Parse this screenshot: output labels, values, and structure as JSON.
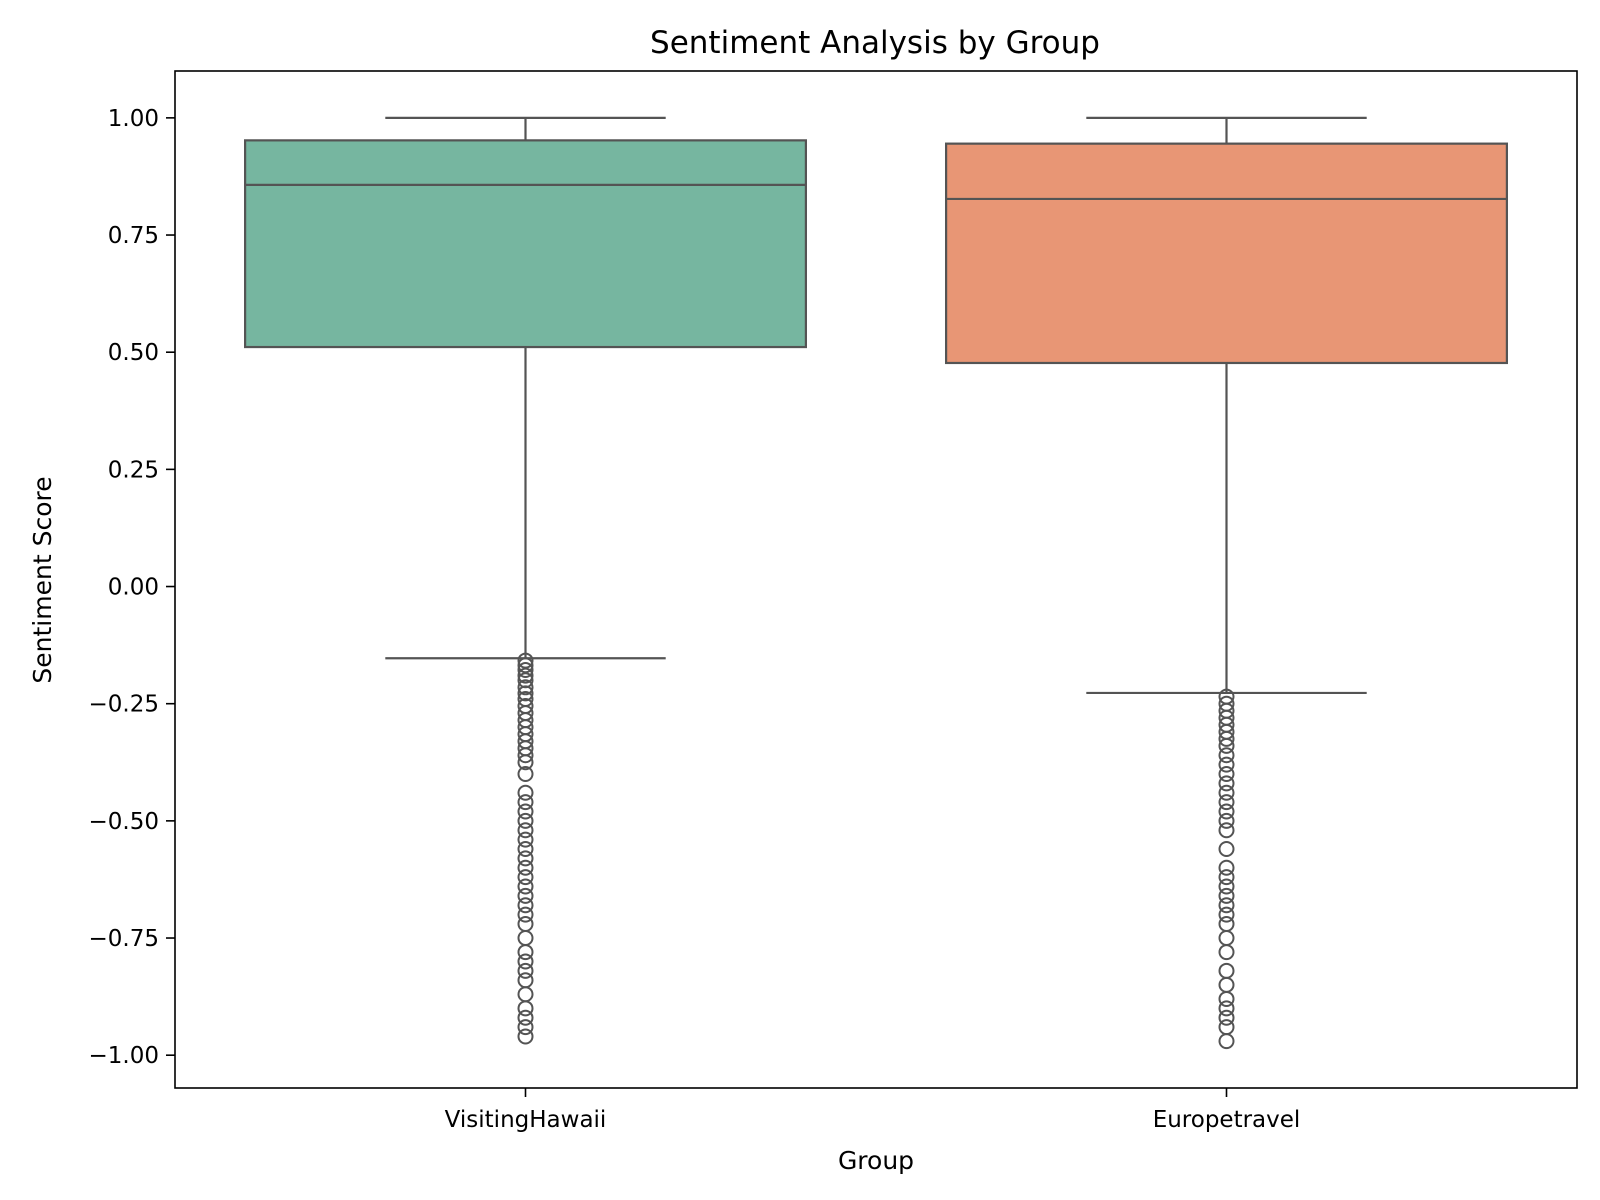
{
  "chart_data": {
    "type": "box",
    "title": "Sentiment Analysis by Group",
    "xlabel": "Group",
    "ylabel": "Sentiment Score",
    "ylim": [
      -1.07,
      1.1
    ],
    "yticks": [
      1.0,
      0.75,
      0.5,
      0.25,
      0.0,
      -0.25,
      -0.5,
      -0.75,
      -1.0
    ],
    "ytick_labels": [
      "1.00",
      "0.75",
      "0.50",
      "0.25",
      "0.00",
      "−0.25",
      "−0.50",
      "−0.75",
      "−1.00"
    ],
    "categories": [
      "VisitingHawaii",
      "Europetravel"
    ],
    "grid": false,
    "legend": "none",
    "boxes": [
      {
        "name": "VisitingHawaii",
        "color": "#76b6a0",
        "whisker_high": 1.0,
        "q3": 0.952,
        "median": 0.857,
        "q1": 0.511,
        "whisker_low": -0.153,
        "outliers": [
          -0.158,
          -0.168,
          -0.178,
          -0.19,
          -0.2,
          -0.215,
          -0.228,
          -0.24,
          -0.255,
          -0.27,
          -0.285,
          -0.3,
          -0.315,
          -0.33,
          -0.345,
          -0.36,
          -0.375,
          -0.4,
          -0.44,
          -0.46,
          -0.48,
          -0.5,
          -0.52,
          -0.54,
          -0.56,
          -0.58,
          -0.6,
          -0.62,
          -0.64,
          -0.66,
          -0.68,
          -0.7,
          -0.72,
          -0.75,
          -0.78,
          -0.8,
          -0.82,
          -0.84,
          -0.87,
          -0.9,
          -0.92,
          -0.94,
          -0.96
        ]
      },
      {
        "name": "Europetravel",
        "color": "#e89675",
        "whisker_high": 1.0,
        "q3": 0.945,
        "median": 0.827,
        "q1": 0.477,
        "whisker_low": -0.227,
        "outliers": [
          -0.235,
          -0.25,
          -0.265,
          -0.28,
          -0.295,
          -0.31,
          -0.325,
          -0.34,
          -0.36,
          -0.38,
          -0.4,
          -0.42,
          -0.44,
          -0.46,
          -0.48,
          -0.5,
          -0.52,
          -0.56,
          -0.6,
          -0.62,
          -0.64,
          -0.66,
          -0.68,
          -0.7,
          -0.72,
          -0.75,
          -0.78,
          -0.82,
          -0.85,
          -0.88,
          -0.9,
          -0.92,
          -0.94,
          -0.97
        ]
      }
    ]
  }
}
